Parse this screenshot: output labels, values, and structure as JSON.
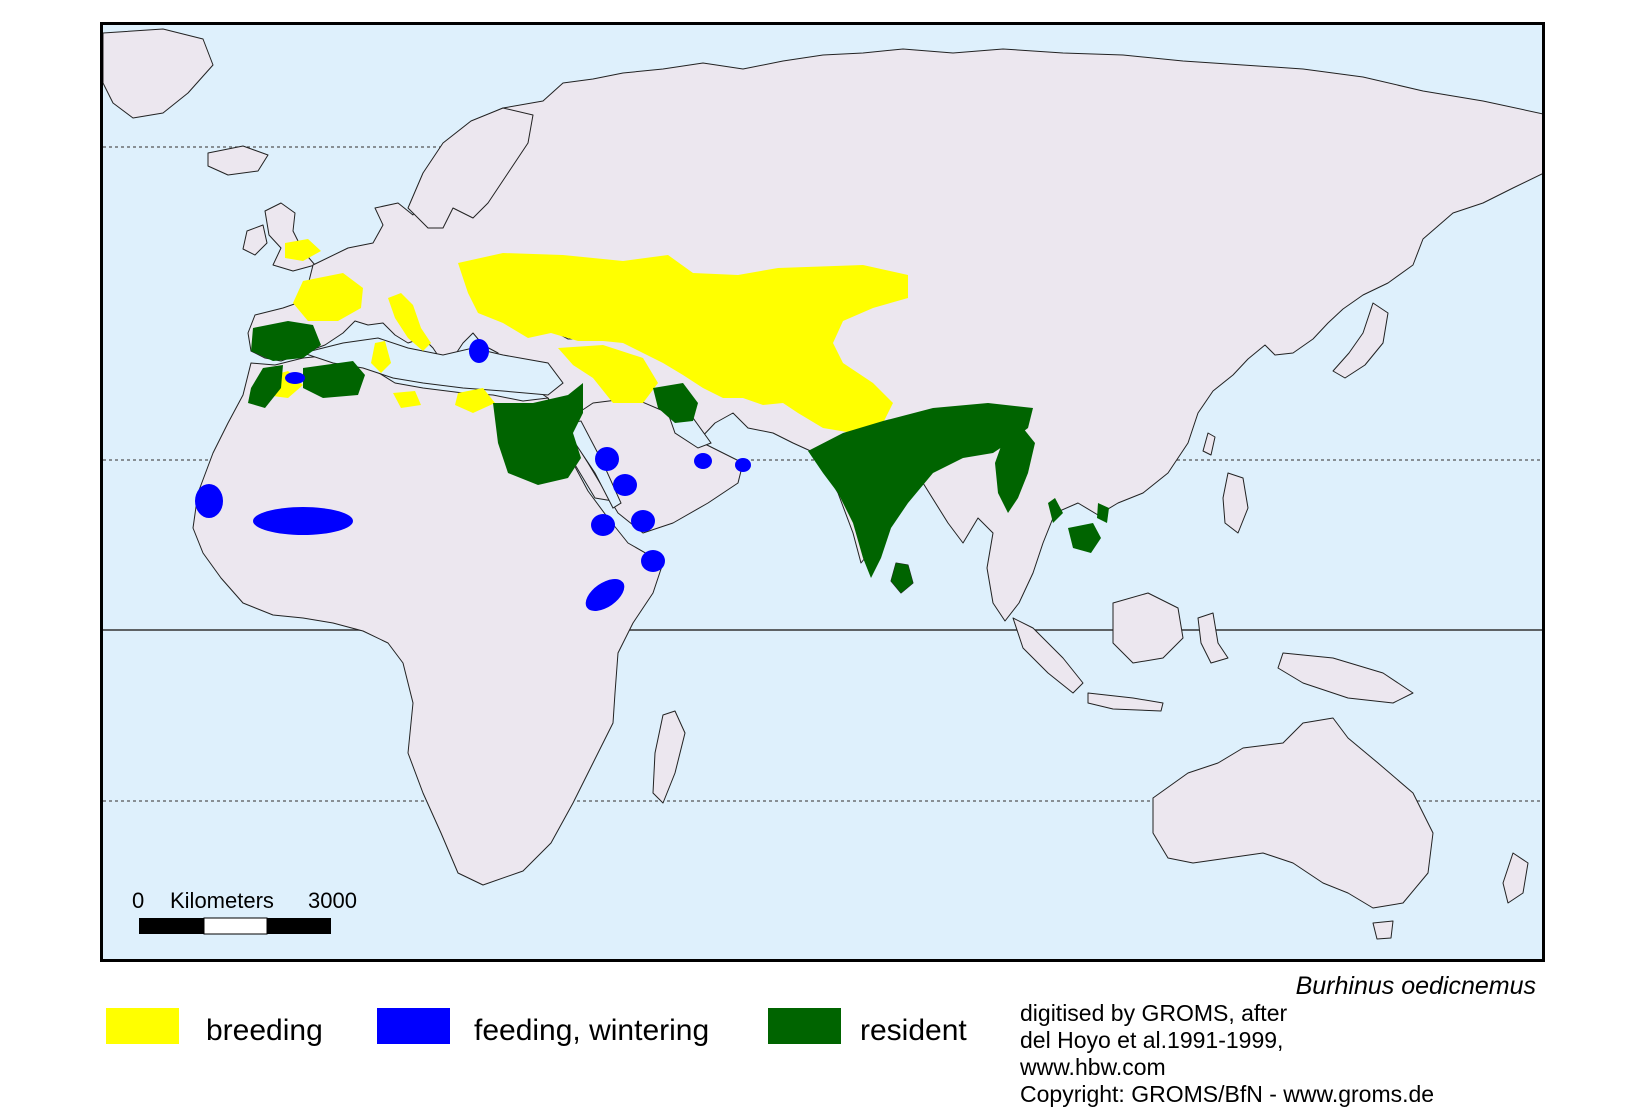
{
  "colors": {
    "ocean": "#def0fc",
    "land": "#ece7ef",
    "breeding": "#ffff00",
    "wintering": "#0000ff",
    "resident": "#006400"
  },
  "species": "Burhinus oedicnemus",
  "scale_bar": {
    "start": "0",
    "unit": "Kilometers",
    "end": "3000"
  },
  "legend": [
    {
      "key": "breeding",
      "label": "breeding",
      "color": "#ffff00"
    },
    {
      "key": "wintering",
      "label": "feeding, wintering",
      "color": "#0000ff"
    },
    {
      "key": "resident",
      "label": "resident",
      "color": "#006400"
    }
  ],
  "credits": [
    "digitised by GROMS, after",
    "del Hoyo et al.1991-1999,",
    "www.hbw.com",
    "Copyright: GROMS/BfN - www.groms.de"
  ]
}
